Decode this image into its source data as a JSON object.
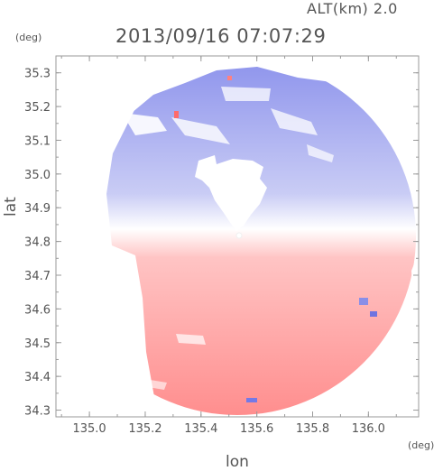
{
  "header": {
    "altitude_label": "ALT(km) 2.0",
    "timestamp": "2013/09/16 07:07:29"
  },
  "chart_data": {
    "type": "heatmap",
    "title": "2013/09/16 07:07:29",
    "subtitle": "ALT(km) 2.0",
    "xlabel": "lon",
    "ylabel": "lat",
    "xunit": "(deg)",
    "yunit": "(deg)",
    "xlim": [
      134.88,
      136.18
    ],
    "ylim": [
      34.28,
      35.35
    ],
    "x_ticks": [
      "135.0",
      "135.2",
      "135.4",
      "135.6",
      "135.8",
      "136.0"
    ],
    "y_ticks": [
      "34.3",
      "34.4",
      "34.5",
      "34.6",
      "34.7",
      "34.8",
      "34.9",
      "35.0",
      "35.1",
      "35.2",
      "35.3"
    ],
    "radar_center": {
      "lon": 135.52,
      "lat": 34.82
    },
    "color_scale": {
      "approaching": "#7f86ea",
      "receding": "#ff8d8d",
      "zero": "#ffffff"
    },
    "field_description": "Doppler radial velocity: blue north of the radar, red south of the radar",
    "grid": false
  }
}
